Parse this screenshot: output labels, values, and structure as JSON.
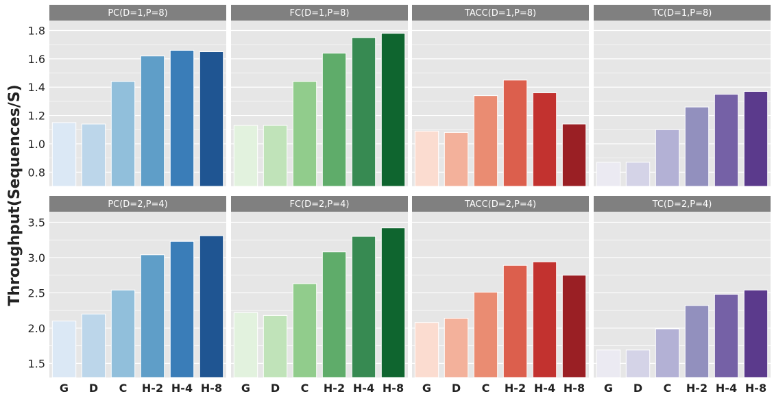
{
  "chart_data": {
    "type": "bar",
    "ylabel": "Throughput(Sequences/S)",
    "categories": [
      "G",
      "D",
      "C",
      "H-2",
      "H-4",
      "H-8"
    ],
    "grid": true,
    "rows": [
      {
        "ylim": [
          0.7,
          1.87
        ],
        "yticks": [
          0.8,
          1.0,
          1.2,
          1.4,
          1.6,
          1.8
        ],
        "panels": [
          {
            "title": "PC(D=1,P=8)",
            "palette": "blues",
            "values": [
              1.15,
              1.14,
              1.44,
              1.62,
              1.66,
              1.65
            ]
          },
          {
            "title": "FC(D=1,P=8)",
            "palette": "greens",
            "values": [
              1.13,
              1.13,
              1.44,
              1.64,
              1.75,
              1.78
            ]
          },
          {
            "title": "TACC(D=1,P=8)",
            "palette": "reds",
            "values": [
              1.09,
              1.08,
              1.34,
              1.45,
              1.36,
              1.14
            ]
          },
          {
            "title": "TC(D=1,P=8)",
            "palette": "purples",
            "values": [
              0.87,
              0.87,
              1.1,
              1.26,
              1.35,
              1.37
            ]
          }
        ]
      },
      {
        "ylim": [
          1.3,
          3.65
        ],
        "yticks": [
          1.5,
          2.0,
          2.5,
          3.0,
          3.5
        ],
        "panels": [
          {
            "title": "PC(D=2,P=4)",
            "palette": "blues",
            "values": [
              2.1,
              2.2,
              2.54,
              3.04,
              3.23,
              3.31
            ]
          },
          {
            "title": "FC(D=2,P=4)",
            "palette": "greens",
            "values": [
              2.22,
              2.18,
              2.63,
              3.08,
              3.3,
              3.42
            ]
          },
          {
            "title": "TACC(D=2,P=4)",
            "palette": "reds",
            "values": [
              2.08,
              2.14,
              2.51,
              2.89,
              2.94,
              2.75
            ]
          },
          {
            "title": "TC(D=2,P=4)",
            "palette": "purples",
            "values": [
              1.69,
              1.69,
              1.99,
              2.32,
              2.48,
              2.54
            ]
          }
        ]
      }
    ]
  },
  "palettes": {
    "blues": [
      "#dbe8f5",
      "#bcd6ea",
      "#91bfdb",
      "#5f9ec8",
      "#3a7db8",
      "#1f5592"
    ],
    "greens": [
      "#e2f2de",
      "#c0e3b9",
      "#91cc8c",
      "#5fac6a",
      "#378a52",
      "#0f652f"
    ],
    "reds": [
      "#fbdcd0",
      "#f3b19b",
      "#ea8c72",
      "#dc5f4d",
      "#c2322f",
      "#9a1f24"
    ],
    "purples": [
      "#ebeaf2",
      "#d4d3e7",
      "#b3b1d5",
      "#9290be",
      "#7561a6",
      "#5b3a8c"
    ]
  },
  "style": {
    "panel_bg": "#e6e6e6",
    "strip_bg": "#808080",
    "grid": "#ffffff"
  }
}
